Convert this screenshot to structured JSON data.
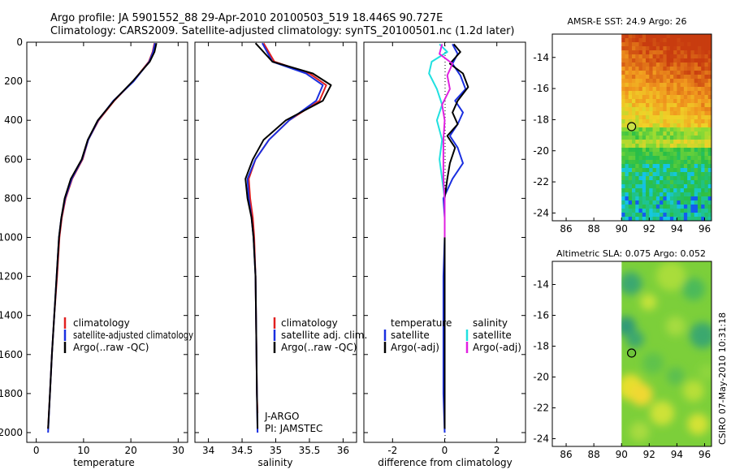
{
  "header": {
    "line1": "Argo profile: JA 5901552_88 29-Apr-2010 20100503_519 18.446S 90.727E",
    "line2": "Climatology: CARS2009. Satellite-adjusted climatology: synTS_20100501.nc (1.2d later)"
  },
  "colors": {
    "climatology": "#e02020",
    "satellite": "#1a2fe0",
    "argo": "#000000",
    "sat_salinity": "#20e0e0",
    "argo_salinity": "#e020e0"
  },
  "chart_data": [
    {
      "type": "line",
      "id": "temperature",
      "xlabel": "temperature",
      "ylabel": "",
      "xlim": [
        -2,
        32
      ],
      "ylim": [
        2050,
        0
      ],
      "xticks": [
        0,
        10,
        20,
        30
      ],
      "yticks": [
        0,
        200,
        400,
        600,
        800,
        1000,
        1200,
        1400,
        1600,
        1800,
        2000
      ],
      "legend": [
        "climatology",
        "satellite-adjusted climatology",
        "Argo(..raw -QC)"
      ],
      "series": [
        {
          "name": "climatology",
          "color": "#e02020",
          "points": [
            [
              25.0,
              5
            ],
            [
              24.6,
              50
            ],
            [
              23.8,
              100
            ],
            [
              20.5,
              200
            ],
            [
              16.5,
              300
            ],
            [
              13.2,
              400
            ],
            [
              11.0,
              500
            ],
            [
              9.8,
              600
            ],
            [
              7.6,
              700
            ],
            [
              6.2,
              800
            ],
            [
              5.4,
              900
            ],
            [
              4.9,
              1000
            ],
            [
              4.4,
              1200
            ],
            [
              3.8,
              1400
            ],
            [
              3.3,
              1600
            ],
            [
              2.9,
              1800
            ],
            [
              2.5,
              1980
            ]
          ]
        },
        {
          "name": "satellite-adjusted climatology",
          "color": "#1a2fe0",
          "points": [
            [
              25.1,
              5
            ],
            [
              24.7,
              50
            ],
            [
              23.9,
              100
            ],
            [
              20.6,
              200
            ],
            [
              16.3,
              300
            ],
            [
              13.1,
              400
            ],
            [
              11.0,
              500
            ],
            [
              9.7,
              600
            ],
            [
              7.5,
              700
            ],
            [
              6.1,
              800
            ],
            [
              5.3,
              900
            ],
            [
              4.8,
              1000
            ],
            [
              4.3,
              1200
            ],
            [
              3.8,
              1400
            ],
            [
              3.3,
              1600
            ],
            [
              2.9,
              1800
            ],
            [
              2.5,
              2000
            ]
          ]
        },
        {
          "name": "Argo(..raw -QC)",
          "color": "#000000",
          "points": [
            [
              25.4,
              5
            ],
            [
              25.0,
              50
            ],
            [
              24.0,
              100
            ],
            [
              20.4,
              200
            ],
            [
              16.4,
              300
            ],
            [
              13.0,
              400
            ],
            [
              10.9,
              500
            ],
            [
              9.6,
              600
            ],
            [
              7.3,
              700
            ],
            [
              6.0,
              800
            ],
            [
              5.3,
              900
            ],
            [
              4.8,
              1000
            ],
            [
              4.3,
              1200
            ],
            [
              3.8,
              1400
            ],
            [
              3.3,
              1600
            ],
            [
              2.9,
              1800
            ],
            [
              2.5,
              1980
            ]
          ]
        }
      ]
    },
    {
      "type": "line",
      "id": "salinity",
      "xlabel": "salinity",
      "xlim": [
        33.8,
        36.2
      ],
      "ylim": [
        2050,
        0
      ],
      "xticks": [
        34,
        34.5,
        35,
        35.5,
        36
      ],
      "legend": [
        "climatology",
        "satellite adj. clim.",
        "Argo(..raw -QC)"
      ],
      "annotation": [
        "J-ARGO",
        "PI: JAMSTEC"
      ],
      "series": [
        {
          "name": "climatology",
          "color": "#e02020",
          "points": [
            [
              34.82,
              5
            ],
            [
              34.98,
              100
            ],
            [
              35.5,
              160
            ],
            [
              35.75,
              220
            ],
            [
              35.65,
              300
            ],
            [
              35.2,
              400
            ],
            [
              34.9,
              500
            ],
            [
              34.7,
              600
            ],
            [
              34.6,
              700
            ],
            [
              34.62,
              800
            ],
            [
              34.66,
              900
            ],
            [
              34.68,
              1000
            ],
            [
              34.7,
              1200
            ],
            [
              34.71,
              1500
            ],
            [
              34.72,
              1800
            ],
            [
              34.73,
              1900
            ]
          ]
        },
        {
          "name": "satellite adj. clim.",
          "color": "#1a2fe0",
          "points": [
            [
              34.8,
              5
            ],
            [
              34.95,
              100
            ],
            [
              35.45,
              160
            ],
            [
              35.7,
              220
            ],
            [
              35.6,
              300
            ],
            [
              35.2,
              400
            ],
            [
              34.9,
              500
            ],
            [
              34.7,
              600
            ],
            [
              34.58,
              700
            ],
            [
              34.6,
              800
            ],
            [
              34.64,
              900
            ],
            [
              34.67,
              1000
            ],
            [
              34.7,
              1200
            ],
            [
              34.71,
              1500
            ],
            [
              34.72,
              1800
            ],
            [
              34.73,
              2000
            ]
          ]
        },
        {
          "name": "Argo(..raw -QC)",
          "color": "#000000",
          "points": [
            [
              34.7,
              5
            ],
            [
              34.95,
              100
            ],
            [
              35.55,
              160
            ],
            [
              35.82,
              220
            ],
            [
              35.7,
              300
            ],
            [
              35.15,
              400
            ],
            [
              34.82,
              500
            ],
            [
              34.66,
              600
            ],
            [
              34.55,
              700
            ],
            [
              34.58,
              800
            ],
            [
              34.64,
              900
            ],
            [
              34.67,
              1000
            ],
            [
              34.7,
              1200
            ],
            [
              34.71,
              1500
            ],
            [
              34.72,
              1800
            ],
            [
              34.73,
              1980
            ]
          ]
        }
      ]
    },
    {
      "type": "line",
      "id": "difference",
      "xlabel": "difference from climatology",
      "xlim": [
        -3.1,
        3.1
      ],
      "ylim": [
        2050,
        0
      ],
      "xticks": [
        -2,
        0,
        2
      ],
      "legend": [
        "temperature",
        "satellite",
        "Argo(-adj)",
        "salinity",
        "satellite",
        "Argo(-adj)"
      ],
      "series": [
        {
          "name": "temperature satellite",
          "color": "#1a2fe0",
          "points": [
            [
              0.3,
              10
            ],
            [
              0.5,
              60
            ],
            [
              0.3,
              110
            ],
            [
              0.6,
              170
            ],
            [
              0.8,
              240
            ],
            [
              0.4,
              300
            ],
            [
              0.7,
              360
            ],
            [
              0.5,
              420
            ],
            [
              0.2,
              480
            ],
            [
              0.5,
              540
            ],
            [
              0.7,
              620
            ],
            [
              0.3,
              700
            ],
            [
              -0.05,
              800
            ],
            [
              0.0,
              900
            ],
            [
              0.0,
              1000
            ],
            [
              -0.05,
              1200
            ],
            [
              -0.05,
              1500
            ],
            [
              -0.05,
              1800
            ],
            [
              0.0,
              2000
            ]
          ]
        },
        {
          "name": "temperature Argo(-adj)",
          "color": "#000000",
          "points": [
            [
              0.35,
              10
            ],
            [
              0.6,
              50
            ],
            [
              0.2,
              110
            ],
            [
              0.7,
              160
            ],
            [
              0.9,
              230
            ],
            [
              0.5,
              300
            ],
            [
              0.3,
              360
            ],
            [
              0.5,
              420
            ],
            [
              0.1,
              480
            ],
            [
              0.4,
              540
            ],
            [
              0.2,
              620
            ],
            [
              0.1,
              700
            ],
            [
              0.0,
              800
            ],
            [
              0.0,
              900
            ],
            [
              0.0,
              1000
            ],
            [
              0.0,
              1200
            ],
            [
              0.0,
              1500
            ],
            [
              0.0,
              1800
            ],
            [
              0.0,
              1980
            ]
          ]
        },
        {
          "name": "salinity satellite",
          "color": "#20e0e0",
          "points": [
            [
              -0.2,
              10
            ],
            [
              0.1,
              50
            ],
            [
              -0.5,
              100
            ],
            [
              -0.6,
              160
            ],
            [
              -0.3,
              240
            ],
            [
              -0.1,
              320
            ],
            [
              -0.3,
              400
            ],
            [
              -0.1,
              500
            ],
            [
              -0.2,
              600
            ],
            [
              -0.1,
              700
            ],
            [
              0.0,
              800
            ],
            [
              0.0,
              900
            ],
            [
              0.0,
              1000
            ]
          ]
        },
        {
          "name": "salinity Argo(-adj)",
          "color": "#e020e0",
          "points": [
            [
              -0.1,
              10
            ],
            [
              -0.2,
              60
            ],
            [
              0.3,
              110
            ],
            [
              0.1,
              170
            ],
            [
              0.2,
              240
            ],
            [
              -0.1,
              320
            ],
            [
              0.0,
              400
            ],
            [
              -0.05,
              500
            ],
            [
              -0.05,
              600
            ],
            [
              -0.05,
              700
            ],
            [
              0.0,
              800
            ],
            [
              0.0,
              900
            ],
            [
              0.0,
              1000
            ]
          ]
        }
      ]
    },
    {
      "type": "heatmap",
      "id": "sst-map",
      "title": "AMSR-E SST: 24.9 Argo: 26",
      "xlim": [
        85,
        96.5
      ],
      "ylim": [
        -24.5,
        -12.5
      ],
      "xticks": [
        86,
        88,
        90,
        92,
        94,
        96
      ],
      "yticks": [
        -14,
        -16,
        -18,
        -20,
        -22,
        -24
      ],
      "data_lon_range": [
        90,
        96.5
      ],
      "marker": {
        "lon": 90.727,
        "lat": -18.446
      }
    },
    {
      "type": "heatmap",
      "id": "sla-map",
      "title": "Altimetric SLA: 0.075 Argo: 0.052",
      "xlim": [
        85,
        96.5
      ],
      "ylim": [
        -24.5,
        -12.5
      ],
      "xticks": [
        86,
        88,
        90,
        92,
        94,
        96
      ],
      "yticks": [
        -14,
        -16,
        -18,
        -20,
        -22,
        -24
      ],
      "data_lon_range": [
        90,
        96.5
      ],
      "marker": {
        "lon": 90.727,
        "lat": -18.446
      }
    }
  ],
  "side_label": "CSIRO 07-May-2010 10:31:18"
}
